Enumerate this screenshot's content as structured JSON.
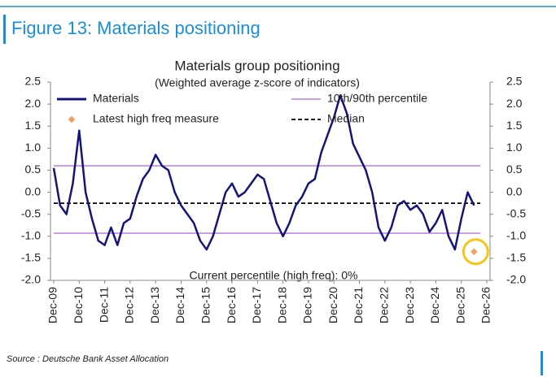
{
  "header": {
    "title": "Figure 13: Materials positioning"
  },
  "chart_data": {
    "type": "line",
    "title": "Materials group positioning",
    "subtitle": "(Weighted average z-score of indicators)",
    "annotation": "Current percentile (high freq): 0%",
    "x": [
      "Dec-09",
      "Mar-10",
      "Jun-10",
      "Sep-10",
      "Dec-10",
      "Mar-11",
      "Jun-11",
      "Sep-11",
      "Dec-11",
      "Mar-12",
      "Jun-12",
      "Sep-12",
      "Dec-12",
      "Mar-13",
      "Jun-13",
      "Sep-13",
      "Dec-13",
      "Mar-14",
      "Jun-14",
      "Sep-14",
      "Dec-14",
      "Mar-15",
      "Jun-15",
      "Sep-15",
      "Dec-15",
      "Mar-16",
      "Jun-16",
      "Sep-16",
      "Dec-16",
      "Mar-17",
      "Jun-17",
      "Sep-17",
      "Dec-17",
      "Mar-18",
      "Jun-18",
      "Sep-18",
      "Dec-18",
      "Mar-19",
      "Jun-19",
      "Sep-19",
      "Dec-19",
      "Mar-20",
      "Jun-20",
      "Sep-20",
      "Dec-20",
      "Mar-21",
      "Jun-21",
      "Sep-21",
      "Dec-21",
      "Mar-22",
      "Jun-22",
      "Sep-22",
      "Dec-22",
      "Mar-23",
      "Jun-23",
      "Sep-23",
      "Dec-23",
      "Mar-24",
      "Jun-24",
      "Sep-24",
      "Dec-24",
      "Mar-25",
      "Jun-25",
      "Sep-25",
      "Dec-25",
      "Mar-26",
      "Jun-26"
    ],
    "series": [
      {
        "name": "Materials",
        "color": "#14147a",
        "values": [
          0.55,
          -0.3,
          -0.5,
          0.2,
          1.4,
          0.0,
          -0.6,
          -1.1,
          -1.2,
          -0.8,
          -1.2,
          -0.7,
          -0.6,
          -0.1,
          0.3,
          0.5,
          0.85,
          0.6,
          0.5,
          0.0,
          -0.3,
          -0.5,
          -0.7,
          -1.1,
          -1.3,
          -1.0,
          -0.5,
          0.0,
          0.2,
          -0.1,
          0.0,
          0.2,
          0.4,
          0.3,
          -0.2,
          -0.7,
          -1.0,
          -0.7,
          -0.3,
          -0.1,
          0.2,
          0.3,
          0.9,
          1.3,
          1.7,
          2.2,
          1.8,
          1.1,
          0.8,
          0.5,
          0.0,
          -0.8,
          -1.1,
          -0.8,
          -0.3,
          -0.2,
          -0.4,
          -0.3,
          -0.5,
          -0.9,
          -0.7,
          -0.4,
          -1.0,
          -1.3,
          -0.6,
          0.0,
          -0.3
        ]
      }
    ],
    "reference_lines": [
      {
        "name": "10th/90th percentile",
        "color": "#b77de0",
        "values": [
          0.6,
          -0.93
        ]
      },
      {
        "name": "Median",
        "color": "#000000",
        "values": [
          -0.25
        ]
      }
    ],
    "markers": [
      {
        "name": "Latest high freq measure",
        "color": "#f0a060",
        "x": "Jun-26",
        "value": -1.35
      }
    ],
    "xlim": [
      "Dec-09",
      "Dec-26"
    ],
    "xticks": [
      "Dec-09",
      "Dec-10",
      "Dec-11",
      "Dec-12",
      "Dec-13",
      "Dec-14",
      "Dec-15",
      "Dec-16",
      "Dec-17",
      "Dec-18",
      "Dec-19",
      "Dec-20",
      "Dec-21",
      "Dec-22",
      "Dec-23",
      "Dec-24",
      "Dec-25",
      "Dec-26"
    ],
    "ylim": [
      -2.0,
      2.5
    ],
    "yticks": [
      {
        "value": -2.0,
        "label": "-2.0"
      },
      -1.5,
      {
        "value": -1.0,
        "label": "-1.0"
      },
      -0.5,
      {
        "value": 0.0,
        "label": "0.0"
      },
      0.5,
      {
        "value": 1.0,
        "label": "1.0"
      },
      1.5,
      {
        "value": 2.0,
        "label": "2.0"
      },
      2.5
    ]
  },
  "source": "Source : Deutsche Bank Asset Allocation"
}
